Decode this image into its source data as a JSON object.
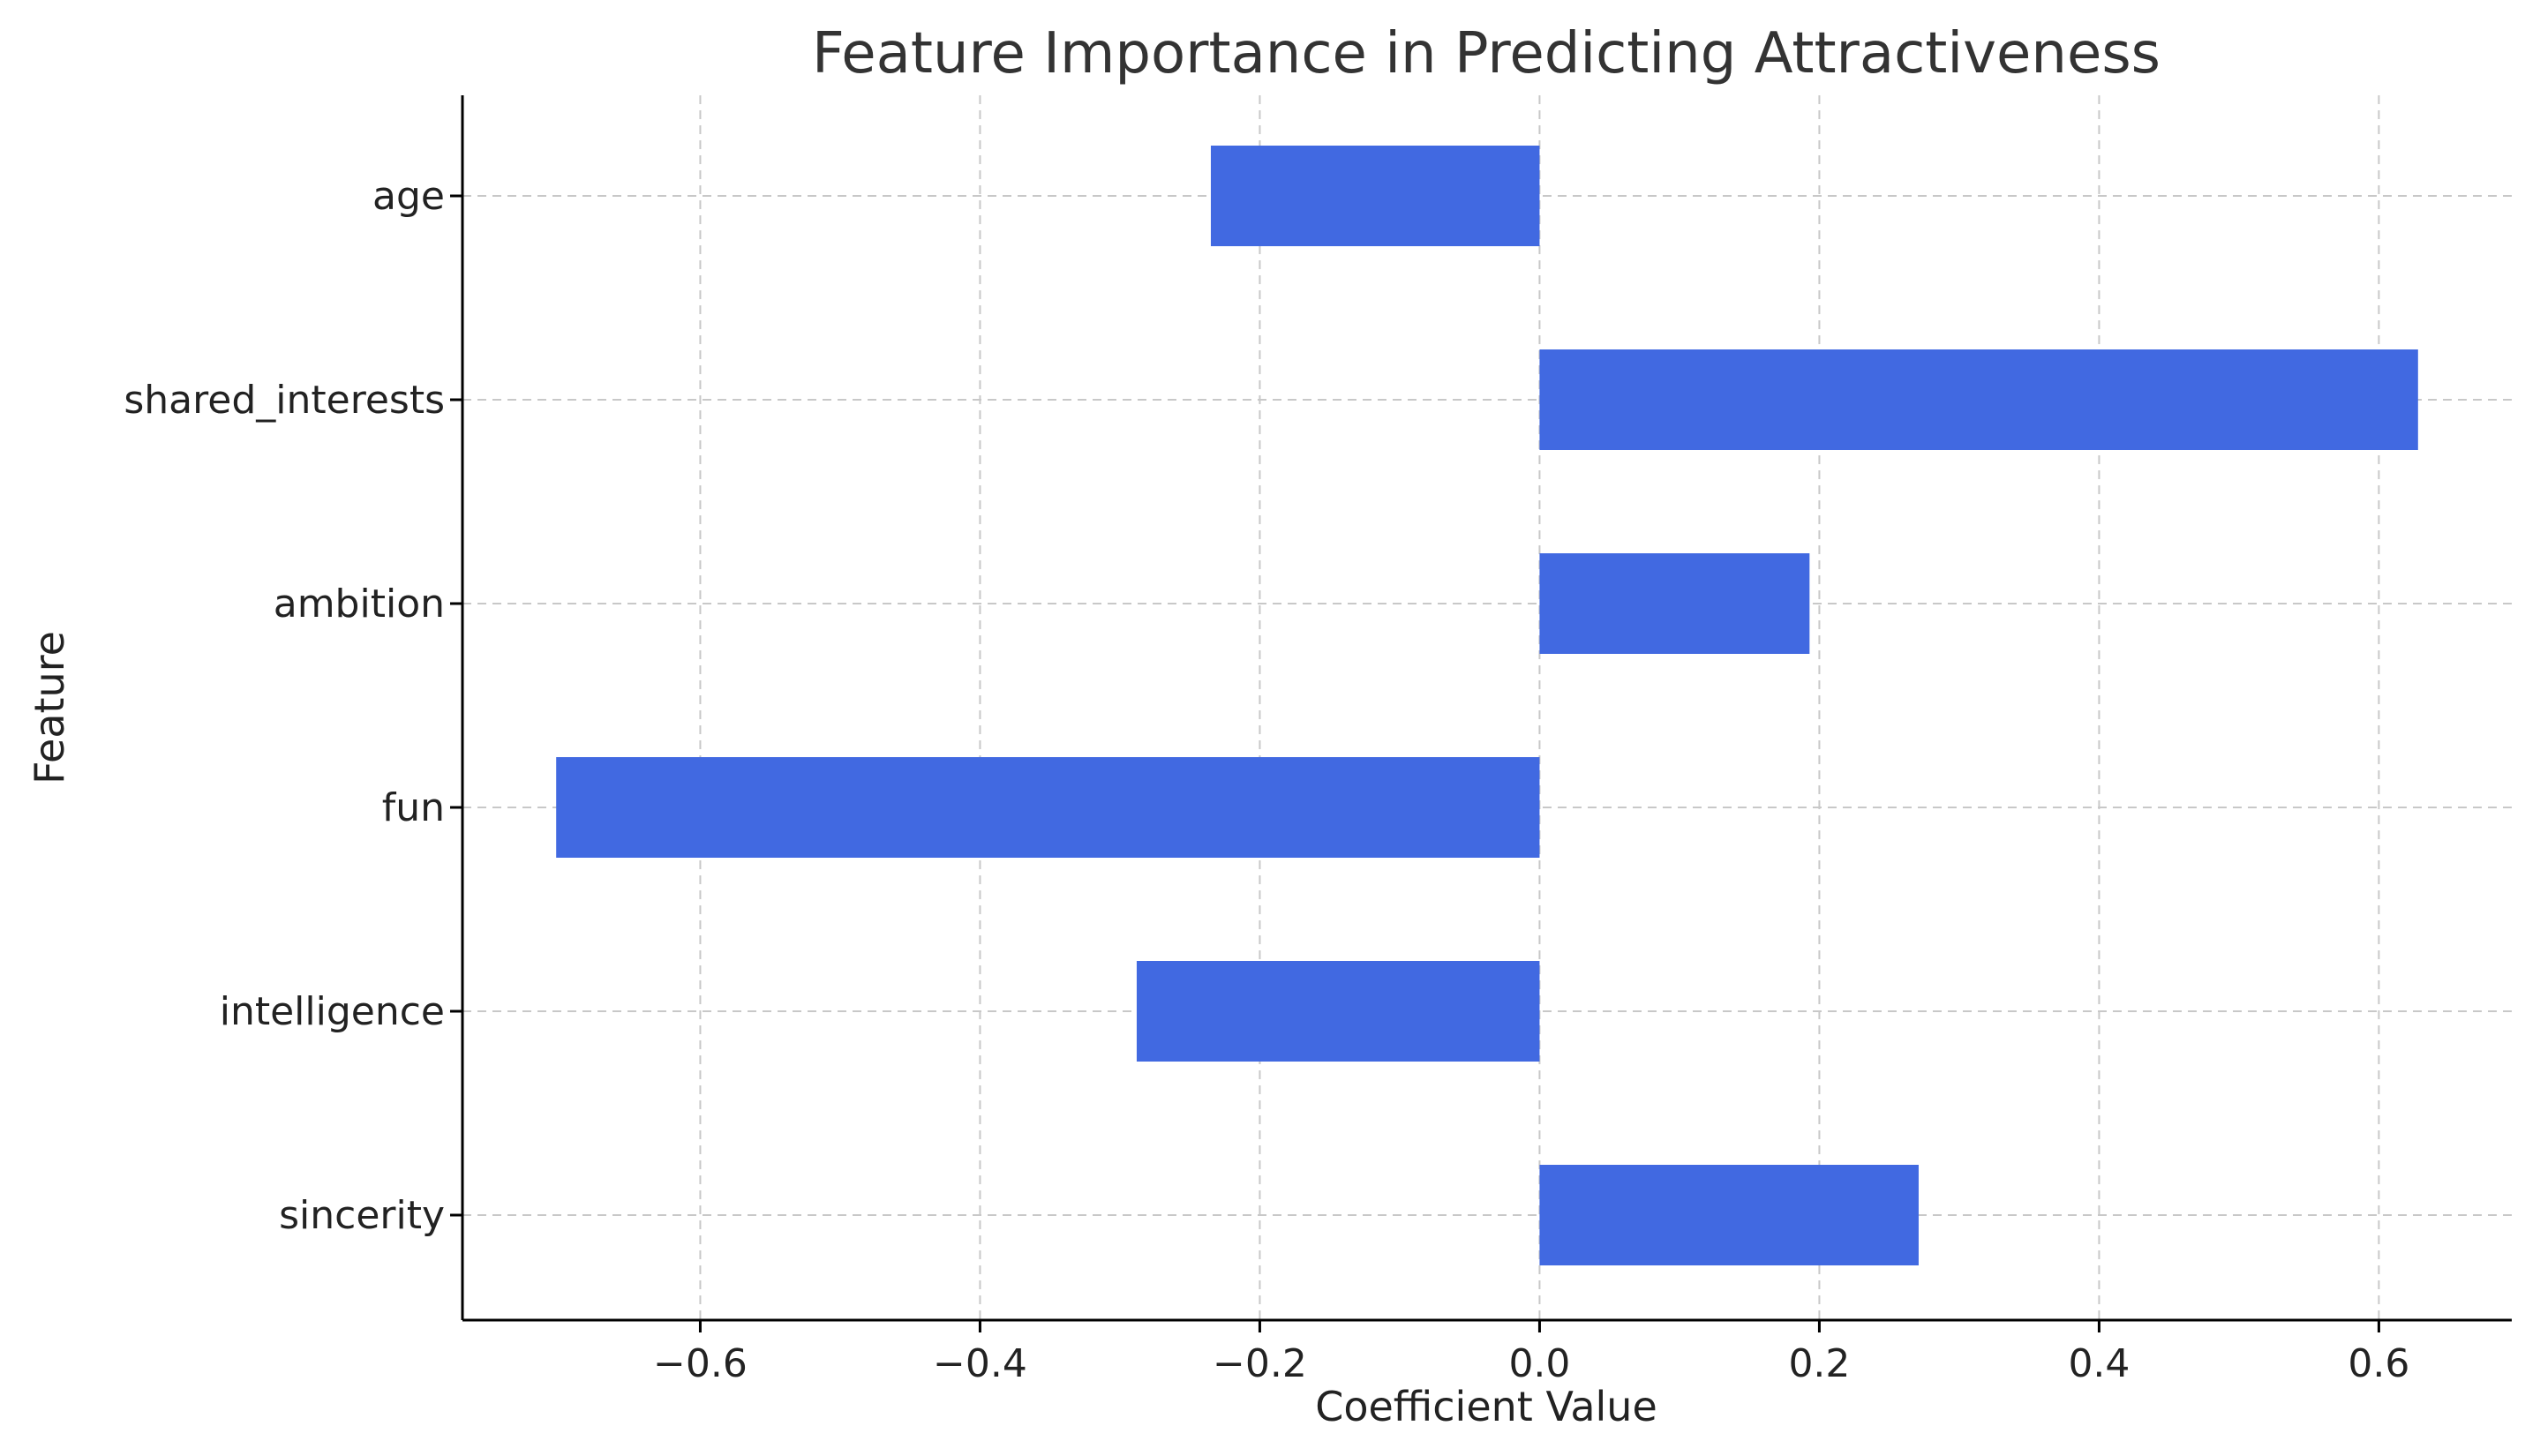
{
  "chart_data": {
    "type": "bar",
    "orientation": "horizontal",
    "title": "Feature Importance in Predicting Attractiveness",
    "xlabel": "Coefficient Value",
    "ylabel": "Feature",
    "categories": [
      "age",
      "shared_interests",
      "ambition",
      "fun",
      "intelligence",
      "sincerity"
    ],
    "values": [
      -0.235,
      0.628,
      0.193,
      -0.703,
      -0.288,
      0.271
    ],
    "xlim": [
      -0.77,
      0.695
    ],
    "xticks": [
      -0.6,
      -0.4,
      -0.2,
      0.0,
      0.2,
      0.4,
      0.6
    ],
    "xtick_labels": [
      "−0.6",
      "−0.4",
      "−0.2",
      "0.0",
      "0.2",
      "0.4",
      "0.6"
    ],
    "grid": true,
    "bar_color": "#4169e1"
  }
}
